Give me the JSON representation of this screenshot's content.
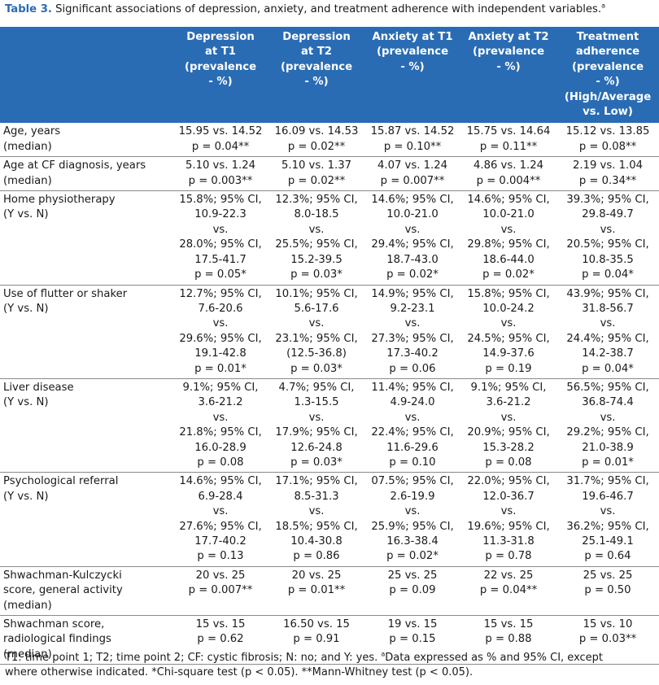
{
  "title": {
    "label": "Table 3.",
    "text": " Significant associations of depression, anxiety, and treatment adherence with independent variables.",
    "marker": "a"
  },
  "header": [
    [
      "Depression",
      "at T1",
      "(prevalence",
      "- %)"
    ],
    [
      "Depression",
      "at T2",
      "(prevalence",
      "- %)"
    ],
    [
      "Anxiety at T1",
      "(prevalence",
      "- %)"
    ],
    [
      "Anxiety at T2",
      "(prevalence",
      "- %)"
    ],
    [
      "Treatment",
      "adherence",
      "(prevalence",
      "- %)",
      "(High/Average",
      "vs. Low)"
    ]
  ],
  "rows": [
    {
      "label": [
        "Age, years",
        "(median)"
      ],
      "cells": [
        [
          "15.95 vs. 14.52",
          "p = 0.04**"
        ],
        [
          "16.09 vs. 14.53",
          "p = 0.02**"
        ],
        [
          "15.87 vs. 14.52",
          "p = 0.10**"
        ],
        [
          "15.75 vs. 14.64",
          "p = 0.11**"
        ],
        [
          "15.12 vs. 13.85",
          "p = 0.08**"
        ]
      ]
    },
    {
      "label": [
        "Age at CF diagnosis, years",
        "(median)"
      ],
      "cells": [
        [
          "5.10 vs. 1.24",
          "p = 0.003**"
        ],
        [
          "5.10 vs. 1.37",
          "p = 0.02**"
        ],
        [
          "4.07 vs. 1.24",
          "p = 0.007**"
        ],
        [
          "4.86 vs. 1.24",
          "p = 0.004**"
        ],
        [
          "2.19 vs. 1.04",
          "p = 0.34**"
        ]
      ]
    },
    {
      "label": [
        "Home physiotherapy",
        "(Y vs. N)"
      ],
      "cells": [
        [
          "15.8%; 95% CI,",
          "10.9-22.3",
          "vs.",
          "28.0%; 95% CI,",
          "17.5-41.7",
          "p = 0.05*"
        ],
        [
          "12.3%; 95% CI,",
          "8.0-18.5",
          "vs.",
          "25.5%; 95% CI,",
          "15.2-39.5",
          "p = 0.03*"
        ],
        [
          "14.6%; 95% CI,",
          "10.0-21.0",
          "vs.",
          "29.4%; 95% CI,",
          "18.7-43.0",
          "p = 0.02*"
        ],
        [
          "14.6%; 95% CI,",
          "10.0-21.0",
          "vs.",
          "29.8%; 95% CI,",
          "18.6-44.0",
          "p = 0.02*"
        ],
        [
          "39.3%; 95% CI,",
          "29.8-49.7",
          "vs.",
          "20.5%; 95% CI,",
          "10.8-35.5",
          "p = 0.04*"
        ]
      ]
    },
    {
      "label": [
        "Use of flutter or shaker",
        "(Y vs. N)"
      ],
      "cells": [
        [
          "12.7%; 95% CI,",
          "7.6-20.6",
          "vs.",
          "29.6%; 95% CI,",
          "19.1-42.8",
          "p = 0.01*"
        ],
        [
          "10.1%; 95% CI,",
          "5.6-17.6",
          "vs.",
          "23.1%; 95% CI,",
          "(12.5-36.8)",
          "p = 0.03*"
        ],
        [
          "14.9%; 95% CI,",
          "9.2-23.1",
          "vs.",
          "27.3%; 95% CI,",
          "17.3-40.2",
          "p = 0.06"
        ],
        [
          "15.8%; 95% CI,",
          "10.0-24.2",
          "vs.",
          "24.5%; 95% CI,",
          "14.9-37.6",
          "p = 0.19"
        ],
        [
          "43.9%; 95% CI,",
          "31.8-56.7",
          "vs.",
          "24.4%; 95% CI,",
          "14.2-38.7",
          "p = 0.04*"
        ]
      ]
    },
    {
      "label": [
        "Liver disease",
        "(Y vs. N)"
      ],
      "cells": [
        [
          "9.1%; 95% CI,",
          "3.6-21.2",
          "vs.",
          "21.8%; 95% CI,",
          "16.0-28.9",
          "p = 0.08"
        ],
        [
          "4.7%; 95% CI,",
          "1.3-15.5",
          "vs.",
          "17.9%; 95% CI,",
          "12.6-24.8",
          "p = 0.03*"
        ],
        [
          "11.4%; 95% CI,",
          "4.9-24.0",
          "vs.",
          "22.4%; 95% CI,",
          "11.6-29.6",
          "p = 0.10"
        ],
        [
          "9.1%; 95% CI,",
          "3.6-21.2",
          "vs.",
          "20.9%; 95% CI,",
          "15.3-28.2",
          "p = 0.08"
        ],
        [
          "56.5%; 95% CI,",
          "36.8-74.4",
          "vs.",
          "29.2%; 95% CI,",
          "21.0-38.9",
          "p = 0.01*"
        ]
      ]
    },
    {
      "label": [
        "Psychological referral",
        "(Y vs. N)"
      ],
      "cells": [
        [
          "14.6%; 95% CI,",
          "6.9-28.4",
          "vs.",
          "27.6%; 95% CI,",
          "17.7-40.2",
          "p = 0.13"
        ],
        [
          "17.1%; 95% CI,",
          "8.5-31.3",
          "vs.",
          "18.5%; 95% CI,",
          "10.4-30.8",
          "p = 0.86"
        ],
        [
          "07.5%; 95% CI,",
          "2.6-19.9",
          "vs.",
          "25.9%; 95% CI,",
          "16.3-38.4",
          "p = 0.02*"
        ],
        [
          "22.0%; 95% CI,",
          "12.0-36.7",
          "vs.",
          "19.6%; 95% CI,",
          "11.3-31.8",
          "p = 0.78"
        ],
        [
          "31.7%; 95% CI,",
          "19.6-46.7",
          "vs.",
          "36.2%; 95% CI,",
          "25.1-49.1",
          "p = 0.64"
        ]
      ]
    },
    {
      "label": [
        "Shwachman-Kulczycki",
        "score, general activity",
        "(median)"
      ],
      "cells": [
        [
          "20 vs. 25",
          "p = 0.007**"
        ],
        [
          "20 vs. 25",
          "p = 0.01**"
        ],
        [
          "25 vs. 25",
          "p = 0.09"
        ],
        [
          "22 vs. 25",
          "p = 0.04**"
        ],
        [
          "25 vs. 25",
          "p = 0.50"
        ]
      ]
    },
    {
      "label": [
        "Shwachman score,",
        "radiological findings",
        "(median)"
      ],
      "cells": [
        [
          "15 vs. 15",
          "p = 0.62"
        ],
        [
          "16.50 vs. 15",
          "p = 0.91"
        ],
        [
          "19 vs. 15",
          "p = 0.15"
        ],
        [
          "15 vs. 15",
          "p = 0.88"
        ],
        [
          "15 vs. 10",
          "p = 0.03**"
        ]
      ]
    }
  ],
  "footnote": {
    "line1_pre": "T1: time point 1; T2; time point 2; CF: cystic fibrosis; N: no; and Y: yes. ",
    "marker": "a",
    "line1_post": "Data expressed as % and 95% CI, except",
    "line2": "where otherwise indicated. *Chi-square test (p < 0.05). **Mann-Whitney test (p < 0.05)."
  }
}
